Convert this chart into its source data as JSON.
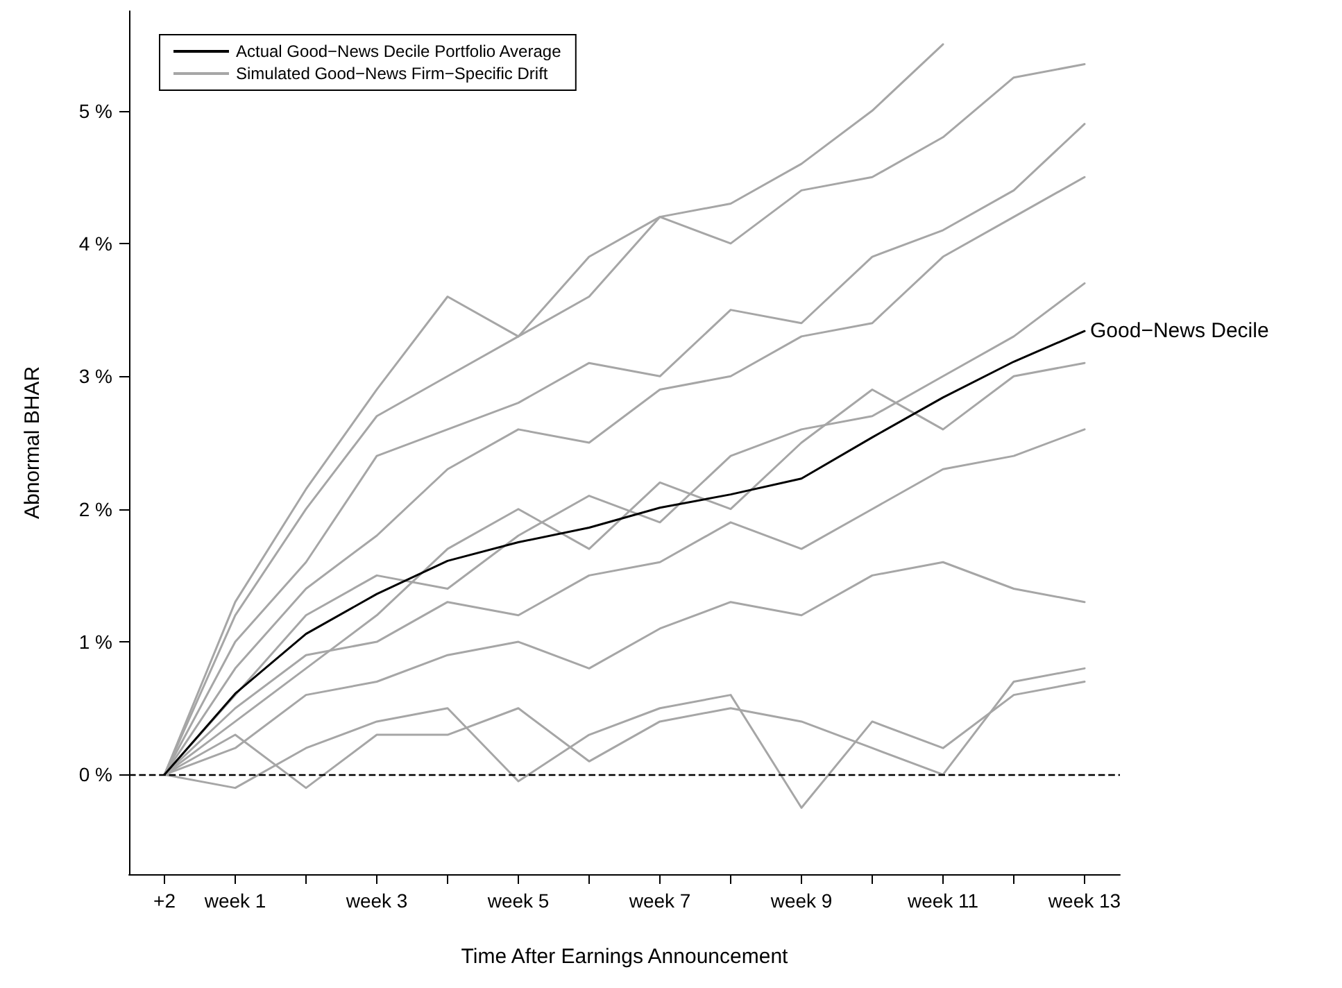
{
  "chart_data": {
    "type": "line",
    "xlabel": "Time After Earnings Announcement",
    "ylabel": "Abnormal BHAR",
    "categories": [
      "+2",
      "week 1",
      null,
      "week 3",
      null,
      "week 5",
      null,
      "week 7",
      null,
      "week 9",
      null,
      "week 11",
      null,
      "week 13"
    ],
    "ylim": [
      -0.75,
      5.75
    ],
    "yticks": [
      {
        "value": 0,
        "label": "0 %"
      },
      {
        "value": 1,
        "label": "1 %"
      },
      {
        "value": 2,
        "label": "2 %"
      },
      {
        "value": 3,
        "label": "3 %"
      },
      {
        "value": 4,
        "label": "4 %"
      },
      {
        "value": 5,
        "label": "5 %"
      }
    ],
    "series": [
      {
        "name": "Simulated Good−News Firm−Specific Drift",
        "color": "#a6a6a6",
        "values": [
          0,
          1.3,
          2.15,
          2.9,
          3.6,
          3.3,
          3.9,
          4.2,
          4.3,
          4.6,
          5.0,
          5.5,
          null,
          null
        ]
      },
      {
        "color": "#a6a6a6",
        "values": [
          0,
          1.2,
          2.0,
          2.7,
          3.0,
          3.3,
          3.6,
          4.2,
          4.0,
          4.4,
          4.5,
          4.8,
          5.25,
          5.35
        ]
      },
      {
        "color": "#a6a6a6",
        "values": [
          0,
          -0.1,
          0.2,
          0.4,
          0.5,
          -0.05,
          0.3,
          0.5,
          0.6,
          -0.25,
          0.4,
          0.2,
          0.6,
          0.7
        ]
      },
      {
        "color": "#a6a6a6",
        "values": [
          0,
          0.3,
          -0.1,
          0.3,
          0.3,
          0.5,
          0.1,
          0.4,
          0.5,
          0.4,
          0.2,
          0.0,
          0.7,
          0.8
        ]
      },
      {
        "color": "#a6a6a6",
        "values": [
          0,
          0.8,
          1.4,
          1.8,
          2.3,
          2.6,
          2.5,
          2.9,
          3.0,
          3.3,
          3.4,
          3.9,
          4.2,
          4.5
        ]
      },
      {
        "color": "#a6a6a6",
        "values": [
          0,
          0.5,
          0.9,
          1.0,
          1.3,
          1.2,
          1.5,
          1.6,
          1.9,
          1.7,
          2.0,
          2.3,
          2.4,
          2.6
        ]
      },
      {
        "color": "#a6a6a6",
        "values": [
          0,
          1.0,
          1.6,
          2.4,
          2.6,
          2.8,
          3.1,
          3.0,
          3.5,
          3.4,
          3.9,
          4.1,
          4.4,
          4.9
        ]
      },
      {
        "color": "#a6a6a6",
        "values": [
          0,
          0.2,
          0.6,
          0.7,
          0.9,
          1.0,
          0.8,
          1.1,
          1.3,
          1.2,
          1.5,
          1.6,
          1.4,
          1.3
        ]
      },
      {
        "color": "#a6a6a6",
        "values": [
          0,
          0.6,
          1.2,
          1.5,
          1.4,
          1.8,
          2.1,
          1.9,
          2.4,
          2.6,
          2.7,
          3.0,
          3.3,
          3.7
        ]
      },
      {
        "color": "#a6a6a6",
        "values": [
          0,
          0.4,
          0.8,
          1.2,
          1.7,
          2.0,
          1.7,
          2.2,
          2.0,
          2.5,
          2.9,
          2.6,
          3.0,
          3.1
        ]
      },
      {
        "name": "Actual Good−News Decile Portfolio Average",
        "color": "#000000",
        "values": [
          0,
          0.61,
          1.06,
          1.36,
          1.61,
          1.75,
          1.86,
          2.01,
          2.11,
          2.23,
          2.54,
          2.84,
          3.11,
          3.34
        ]
      }
    ],
    "annotations": [
      {
        "text": "Good−News Decile",
        "x": "week 13",
        "y": 3.34
      }
    ],
    "ref_lines": [
      {
        "axis": "y",
        "value": 0,
        "line_style": "dashed",
        "color": "#000000"
      }
    ],
    "legend": "top left",
    "grid": false,
    "marker": "none",
    "line_style": "solid"
  }
}
